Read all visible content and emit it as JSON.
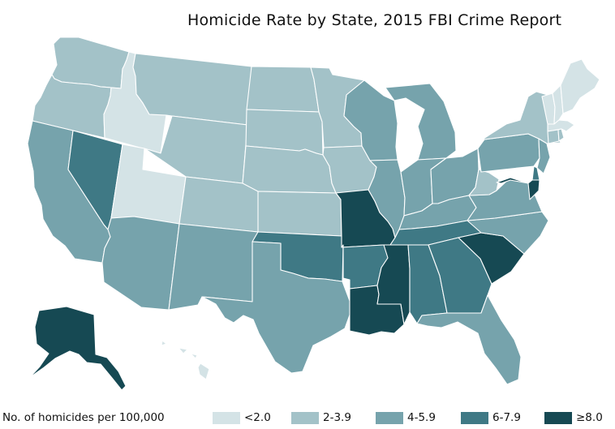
{
  "title": "Homicide Rate by State, 2015 FBI Crime Report",
  "legend": {
    "title": "No. of homicides per 100,000",
    "bins": [
      {
        "label": "<2.0",
        "color": "#d4e3e6"
      },
      {
        "label": "2-3.9",
        "color": "#a3c2c8"
      },
      {
        "label": "4-5.9",
        "color": "#76a3ac"
      },
      {
        "label": "6-7.9",
        "color": "#3f7985"
      },
      {
        "label": "≥8.0",
        "color": "#164953"
      }
    ]
  },
  "states": [
    {
      "id": "WA",
      "bin": 1
    },
    {
      "id": "OR",
      "bin": 1
    },
    {
      "id": "CA",
      "bin": 2
    },
    {
      "id": "NV",
      "bin": 3
    },
    {
      "id": "ID",
      "bin": 0
    },
    {
      "id": "UT",
      "bin": 0
    },
    {
      "id": "AZ",
      "bin": 2
    },
    {
      "id": "MT",
      "bin": 1
    },
    {
      "id": "WY",
      "bin": 1
    },
    {
      "id": "CO",
      "bin": 1
    },
    {
      "id": "NM",
      "bin": 2
    },
    {
      "id": "ND",
      "bin": 1
    },
    {
      "id": "SD",
      "bin": 1
    },
    {
      "id": "NE",
      "bin": 1
    },
    {
      "id": "KS",
      "bin": 1
    },
    {
      "id": "OK",
      "bin": 3
    },
    {
      "id": "TX",
      "bin": 2
    },
    {
      "id": "MN",
      "bin": 1
    },
    {
      "id": "IA",
      "bin": 1
    },
    {
      "id": "MO",
      "bin": 4
    },
    {
      "id": "AR",
      "bin": 3
    },
    {
      "id": "LA",
      "bin": 4
    },
    {
      "id": "WI",
      "bin": 2
    },
    {
      "id": "IL",
      "bin": 2
    },
    {
      "id": "MI",
      "bin": 2
    },
    {
      "id": "IN",
      "bin": 2
    },
    {
      "id": "OH",
      "bin": 2
    },
    {
      "id": "KY",
      "bin": 2
    },
    {
      "id": "TN",
      "bin": 3
    },
    {
      "id": "MS",
      "bin": 4
    },
    {
      "id": "AL",
      "bin": 3
    },
    {
      "id": "GA",
      "bin": 3
    },
    {
      "id": "FL",
      "bin": 2
    },
    {
      "id": "SC",
      "bin": 4
    },
    {
      "id": "NC",
      "bin": 2
    },
    {
      "id": "VA",
      "bin": 2
    },
    {
      "id": "WV",
      "bin": 1
    },
    {
      "id": "PA",
      "bin": 2
    },
    {
      "id": "NY",
      "bin": 1
    },
    {
      "id": "NJ",
      "bin": 2
    },
    {
      "id": "DE",
      "bin": 3
    },
    {
      "id": "MD",
      "bin": 4
    },
    {
      "id": "VT",
      "bin": 0
    },
    {
      "id": "NH",
      "bin": 0
    },
    {
      "id": "ME",
      "bin": 0
    },
    {
      "id": "MA",
      "bin": 0
    },
    {
      "id": "CT",
      "bin": 1
    },
    {
      "id": "RI",
      "bin": 1
    },
    {
      "id": "AK",
      "bin": 4
    },
    {
      "id": "HI",
      "bin": 0
    }
  ]
}
